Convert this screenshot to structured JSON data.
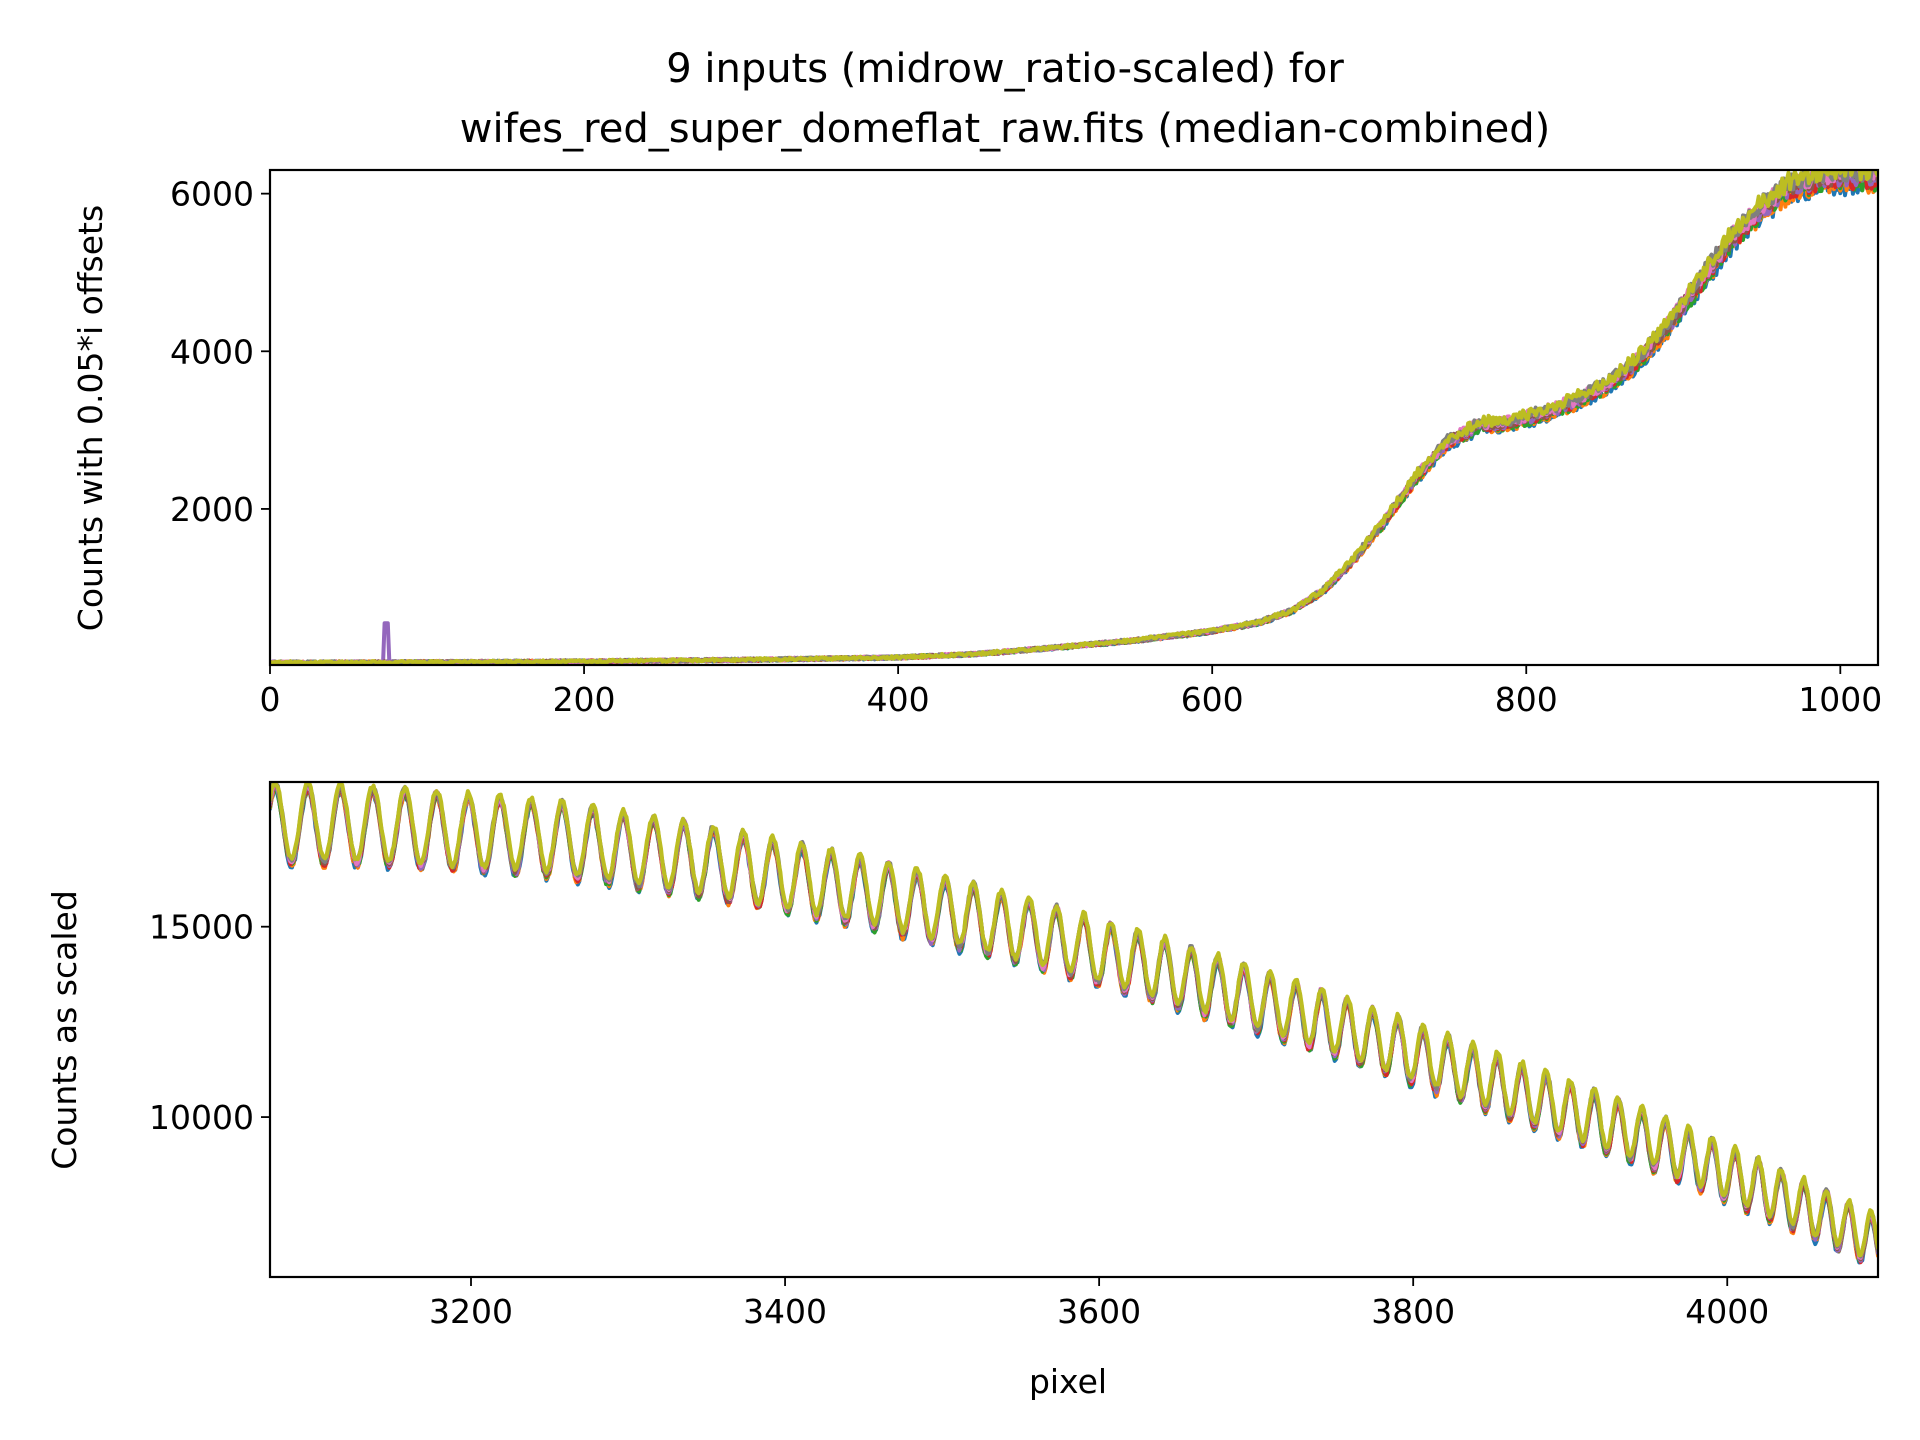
{
  "figure": {
    "title_line1": "9 inputs (midrow_ratio-scaled) for",
    "title_line2": "wifes_red_super_domeflat_raw.fits (median-combined)"
  },
  "series_colors": [
    "#1f77b4",
    "#ff7f0e",
    "#2ca02c",
    "#d62728",
    "#9467bd",
    "#8c564b",
    "#e377c2",
    "#7f7f7f",
    "#bcbd22"
  ],
  "chart_data": [
    {
      "type": "line",
      "ylabel": "Counts with 0.05*i offsets",
      "xlabel": "",
      "xlim": [
        0,
        1024
      ],
      "ylim": [
        20,
        6300
      ],
      "xticks": [
        0,
        200,
        400,
        600,
        800,
        1000
      ],
      "xtick_labels": [
        "0",
        "200",
        "400",
        "600",
        "800",
        "1000"
      ],
      "yticks": [
        2000,
        4000,
        6000
      ],
      "ytick_labels": [
        "2000",
        "4000",
        "6000"
      ],
      "grid": false,
      "n_series": 9,
      "envelope": {
        "x": [
          0,
          100,
          200,
          300,
          400,
          450,
          500,
          550,
          600,
          630,
          650,
          670,
          690,
          710,
          730,
          750,
          770,
          790,
          810,
          830,
          850,
          870,
          890,
          910,
          930,
          950,
          970,
          990,
          1010,
          1024
        ],
        "y": [
          50,
          55,
          65,
          85,
          115,
          160,
          240,
          330,
          450,
          560,
          700,
          950,
          1350,
          1850,
          2400,
          2850,
          3050,
          3100,
          3200,
          3350,
          3550,
          3850,
          4300,
          4850,
          5400,
          5800,
          6100,
          6200,
          6200,
          6200
        ]
      },
      "spike": {
        "series": 4,
        "x": 74,
        "y": 550
      }
    },
    {
      "type": "line",
      "ylabel": "Counts as scaled",
      "xlabel": "pixel",
      "xlim": [
        3072,
        4096
      ],
      "ylim": [
        5800,
        18800
      ],
      "xticks": [
        3200,
        3400,
        3600,
        3800,
        4000
      ],
      "xtick_labels": [
        "3200",
        "3400",
        "3600",
        "3800",
        "4000"
      ],
      "yticks": [
        10000,
        15000
      ],
      "ytick_labels": [
        "10000",
        "15000"
      ],
      "grid": false,
      "n_series": 9,
      "envelope": {
        "x": [
          3072,
          3150,
          3250,
          3350,
          3450,
          3550,
          3650,
          3750,
          3850,
          3950,
          4050,
          4096
        ],
        "y": [
          17700,
          17600,
          17300,
          16700,
          15900,
          14900,
          13700,
          12400,
          10900,
          9400,
          7600,
          6700
        ]
      },
      "fringe_period": 21,
      "fringe_amplitude_start": 1000,
      "fringe_amplitude_end": 650
    }
  ]
}
